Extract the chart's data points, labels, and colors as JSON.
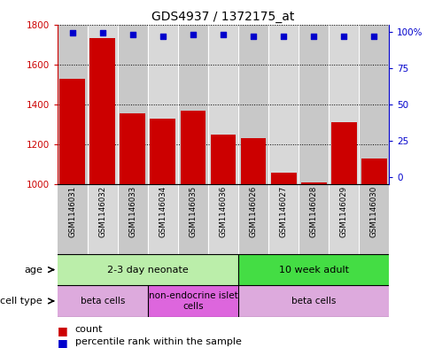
{
  "title": "GDS4937 / 1372175_at",
  "samples": [
    "GSM1146031",
    "GSM1146032",
    "GSM1146033",
    "GSM1146034",
    "GSM1146035",
    "GSM1146036",
    "GSM1146026",
    "GSM1146027",
    "GSM1146028",
    "GSM1146029",
    "GSM1146030"
  ],
  "counts": [
    1530,
    1730,
    1355,
    1330,
    1370,
    1250,
    1230,
    1060,
    1010,
    1310,
    1130
  ],
  "percentiles": [
    99,
    99,
    98,
    97,
    98,
    98,
    97,
    97,
    97,
    97,
    97
  ],
  "y_min": 1000,
  "y_max": 1800,
  "y_ticks": [
    1000,
    1200,
    1400,
    1600,
    1800
  ],
  "right_y_ticks": [
    0,
    25,
    50,
    75,
    100
  ],
  "right_y_labels": [
    "0",
    "25",
    "50",
    "75",
    "100%"
  ],
  "bar_color": "#cc0000",
  "dot_color": "#0000cc",
  "col_colors": [
    "#c8c8c8",
    "#d8d8d8"
  ],
  "age_groups": [
    {
      "label": "2-3 day neonate",
      "start": 0,
      "end": 6,
      "color": "#bbeeaa"
    },
    {
      "label": "10 week adult",
      "start": 6,
      "end": 11,
      "color": "#44dd44"
    }
  ],
  "cell_type_groups": [
    {
      "label": "beta cells",
      "start": 0,
      "end": 3,
      "color": "#ddaadd"
    },
    {
      "label": "non-endocrine islet\ncells",
      "start": 3,
      "end": 6,
      "color": "#dd66dd"
    },
    {
      "label": "beta cells",
      "start": 6,
      "end": 11,
      "color": "#ddaadd"
    }
  ],
  "legend_count_label": "count",
  "legend_pct_label": "percentile rank within the sample",
  "age_label": "age",
  "cell_type_label": "cell type",
  "tick_color_left": "#cc0000",
  "tick_color_right": "#0000cc",
  "bg_color": "#ffffff"
}
